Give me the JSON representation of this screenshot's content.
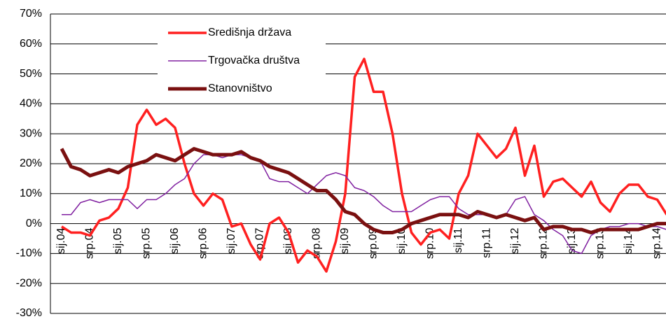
{
  "chart_data": {
    "type": "line",
    "categories": [
      "sij.04",
      null,
      null,
      "srp.04",
      null,
      null,
      "sij.05",
      null,
      null,
      "srp.05",
      null,
      null,
      "sij.06",
      null,
      null,
      "srp.06",
      null,
      null,
      "sij.07",
      null,
      null,
      "srp.07",
      null,
      null,
      "sij.08",
      null,
      null,
      "srp.08",
      null,
      null,
      "sij.09",
      null,
      null,
      "srp.09",
      null,
      null,
      "sij.10",
      null,
      null,
      "srp.10",
      null,
      null,
      "sij.11",
      null,
      null,
      "srp.11",
      null,
      null,
      "sij.12",
      null,
      null,
      "srp.12",
      null,
      null,
      "sij.13",
      null,
      null,
      "srp.13",
      null,
      null,
      "sij.14",
      null,
      null,
      "srp.14",
      null
    ],
    "series": [
      {
        "name": "Središnja država",
        "color": "#ff2020",
        "width": 3.5,
        "values": [
          -1,
          -3,
          -3,
          -4,
          1,
          2,
          5,
          12,
          33,
          38,
          33,
          35,
          32,
          20,
          10,
          6,
          10,
          8,
          -1,
          0,
          -7,
          -12,
          0,
          2,
          -3,
          -13,
          -9,
          -11,
          -16,
          -6,
          10,
          49,
          55,
          44,
          44,
          30,
          10,
          -3,
          -7,
          -3,
          -2,
          -5,
          10,
          16,
          30,
          26,
          22,
          25,
          32,
          16,
          26,
          9,
          14,
          15,
          12,
          9,
          14,
          7,
          4,
          10,
          13,
          13,
          9,
          8,
          3
        ]
      },
      {
        "name": "Trgovačka društva",
        "color": "#8020a0",
        "width": 1.5,
        "values": [
          3,
          3,
          7,
          8,
          7,
          8,
          8,
          8,
          5,
          8,
          8,
          10,
          13,
          15,
          20,
          23,
          23,
          22,
          23,
          23,
          22,
          21,
          15,
          14,
          14,
          12,
          10,
          13,
          16,
          17,
          16,
          12,
          11,
          9,
          6,
          4,
          4,
          4,
          6,
          8,
          9,
          9,
          5,
          3,
          3,
          3,
          2,
          3,
          8,
          9,
          3,
          1,
          -2,
          -4,
          -9,
          -10,
          -4,
          -2,
          -1,
          -1,
          0,
          0,
          -1,
          -1,
          -2
        ]
      },
      {
        "name": "Stanovništvo",
        "color": "#7a1010",
        "width": 5,
        "values": [
          25,
          19,
          18,
          16,
          17,
          18,
          17,
          19,
          20,
          21,
          23,
          22,
          21,
          23,
          25,
          24,
          23,
          23,
          23,
          24,
          22,
          21,
          19,
          18,
          17,
          15,
          13,
          11,
          11,
          8,
          4,
          3,
          0,
          -2,
          -3,
          -3,
          -2,
          0,
          1,
          2,
          3,
          3,
          3,
          2,
          4,
          3,
          2,
          3,
          2,
          1,
          2,
          -2,
          -1,
          -1,
          -2,
          -2,
          -3,
          -2,
          -2,
          -2,
          -2,
          -2,
          -1,
          0,
          0
        ]
      }
    ],
    "ylim": [
      -30,
      70
    ],
    "yticks": [
      {
        "value": -30,
        "label": "-30%"
      },
      {
        "value": -20,
        "label": "-20%"
      },
      {
        "value": -10,
        "label": "-10%"
      },
      {
        "value": 0,
        "label": "0%"
      },
      {
        "value": 10,
        "label": "10%"
      },
      {
        "value": 20,
        "label": "20%"
      },
      {
        "value": 30,
        "label": "30%"
      },
      {
        "value": 40,
        "label": "40%"
      },
      {
        "value": 50,
        "label": "50%"
      },
      {
        "value": 60,
        "label": "60%"
      },
      {
        "value": 70,
        "label": "70%"
      }
    ],
    "grid": true,
    "legend": "top-left"
  }
}
